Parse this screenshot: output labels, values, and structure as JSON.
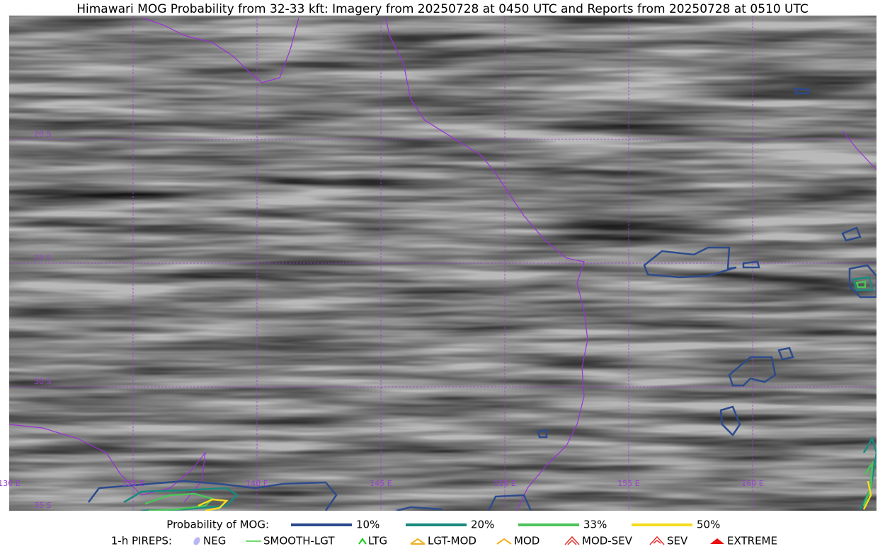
{
  "title": "Himawari MOG Probability from 32-33 kft: Imagery from 20250728 at 0450 UTC and Reports from 20250728 at 0510 UTC",
  "map": {
    "lat_labels": [
      "20 S",
      "25 S",
      "30 S",
      "35 S"
    ],
    "lon_labels": [
      "130 E",
      "135 E",
      "140 E",
      "145 E",
      "150 E",
      "155 E",
      "160 E"
    ]
  },
  "legend": {
    "probability_title": "Probability of MOG:",
    "probability_items": [
      {
        "label": "10%",
        "color": "#2c4b8c"
      },
      {
        "label": "20%",
        "color": "#1a8a80"
      },
      {
        "label": "33%",
        "color": "#4cc35a"
      },
      {
        "label": "50%",
        "color": "#f5dc1e"
      }
    ],
    "pireps_title": "1-h PIREPS:",
    "pireps_items": [
      {
        "label": "NEG",
        "color": "#b8b8f0"
      },
      {
        "label": "SMOOTH-LGT",
        "color": "#40d040"
      },
      {
        "label": "LTG",
        "color": "#10d010"
      },
      {
        "label": "LGT-MOD",
        "color": "#f0b020"
      },
      {
        "label": "MOD",
        "color": "#f0b020"
      },
      {
        "label": "MOD-SEV",
        "color": "#e83030"
      },
      {
        "label": "SEV",
        "color": "#e83030"
      },
      {
        "label": "EXTREME",
        "color": "#e81010"
      }
    ]
  }
}
